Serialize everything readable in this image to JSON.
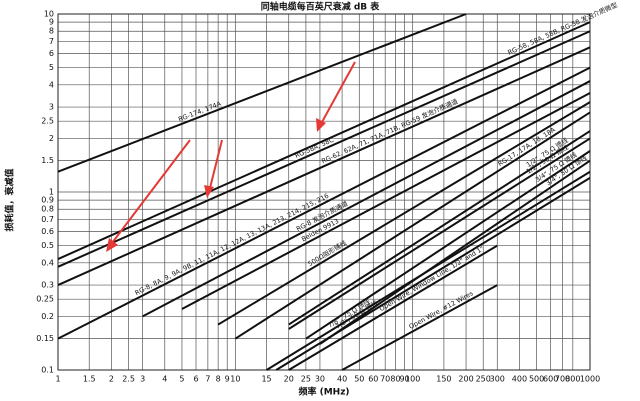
{
  "chart_data": {
    "type": "line",
    "title": "同轴电缆每百英尺衰减 dB 表",
    "x_label": "频率 (MHz)",
    "y_label": "损耗值，衰减值",
    "x_log": true,
    "y_log": true,
    "grid": true,
    "xlim": [
      1,
      1000
    ],
    "ylim": [
      0.1,
      10
    ],
    "xticks": [
      1,
      1.5,
      2,
      2.5,
      3,
      4,
      5,
      6,
      7,
      8,
      9,
      10,
      15,
      20,
      25,
      30,
      40,
      50,
      60,
      70,
      80,
      90,
      100,
      150,
      200,
      250,
      300,
      400,
      500,
      600,
      700,
      800,
      1000
    ],
    "yticks": [
      0.1,
      0.15,
      0.2,
      0.25,
      0.3,
      0.4,
      0.5,
      0.6,
      0.7,
      0.8,
      0.9,
      1,
      1.5,
      2,
      2.5,
      3,
      4,
      5,
      6,
      7,
      8,
      9,
      10
    ],
    "series": [
      {
        "name": "RG-174, 174A",
        "color": "#111111",
        "x": [
          1,
          200
        ],
        "values": [
          1.3,
          10
        ]
      },
      {
        "name": "RG-58, 58A, 58B, RG-58 发泡介质微型",
        "color": "#111111",
        "x": [
          1,
          1000
        ],
        "values": [
          0.42,
          9
        ]
      },
      {
        "name": "RG-58A, 58C",
        "color": "#111111",
        "x": [
          1,
          1000
        ],
        "values": [
          0.38,
          8
        ]
      },
      {
        "name": "RG-62, 62A, 71, 71A, 71B, RG-59 发泡介质通道",
        "color": "#111111",
        "x": [
          1,
          1000
        ],
        "values": [
          0.3,
          6.5
        ]
      },
      {
        "name": "RG-8, 8A, 9, 9A, 9B, 11, 11A, 12, 12A, 13, 13A, 213, 214, 215, 216",
        "color": "#111111",
        "x": [
          1,
          1000
        ],
        "values": [
          0.15,
          5
        ]
      },
      {
        "name": "RG-8 发泡介质通道",
        "color": "#111111",
        "x": [
          3,
          1000
        ],
        "values": [
          0.2,
          4.2
        ]
      },
      {
        "name": "Belden 9913",
        "color": "#111111",
        "x": [
          5,
          1000
        ],
        "values": [
          0.22,
          3.6
        ]
      },
      {
        "name": "500Ω阻形铺线",
        "color": "#111111",
        "x": [
          8,
          1000
        ],
        "values": [
          0.18,
          3.2
        ]
      },
      {
        "name": "RG-17, 17A, 18, 18A",
        "color": "#111111",
        "x": [
          10,
          1000
        ],
        "values": [
          0.15,
          2.8
        ]
      },
      {
        "name": "1/2\", 75 Ω 馈线",
        "color": "#111111",
        "x": [
          20,
          1000
        ],
        "values": [
          0.18,
          2.2
        ]
      },
      {
        "name": "1/2\", 50 Ω 馈线",
        "color": "#111111",
        "x": [
          20,
          1000
        ],
        "values": [
          0.17,
          2
        ]
      },
      {
        "name": "3/4\", 75 Ω 馈线",
        "color": "#111111",
        "x": [
          25,
          1000
        ],
        "values": [
          0.15,
          1.7
        ]
      },
      {
        "name": "3/4\", 50 Ω 馈线",
        "color": "#111111",
        "x": [
          30,
          1000
        ],
        "values": [
          0.14,
          1.5
        ]
      },
      {
        "name": "7/8\", 75 Ω 馈线",
        "color": "#111111",
        "x": [
          15,
          1000
        ],
        "values": [
          0.1,
          1.3
        ]
      },
      {
        "name": "7/8\", 50 Ω 馈线",
        "color": "#111111",
        "x": [
          17,
          1000
        ],
        "values": [
          0.1,
          1.2
        ]
      },
      {
        "name": "Open Wire, Window Line, 1/2\" and 1\"",
        "color": "#111111",
        "x": [
          20,
          300
        ],
        "values": [
          0.1,
          0.5
        ]
      },
      {
        "name": "Open Wire, #12 Wires",
        "color": "#111111",
        "x": [
          40,
          300
        ],
        "values": [
          0.1,
          0.3
        ]
      }
    ]
  }
}
